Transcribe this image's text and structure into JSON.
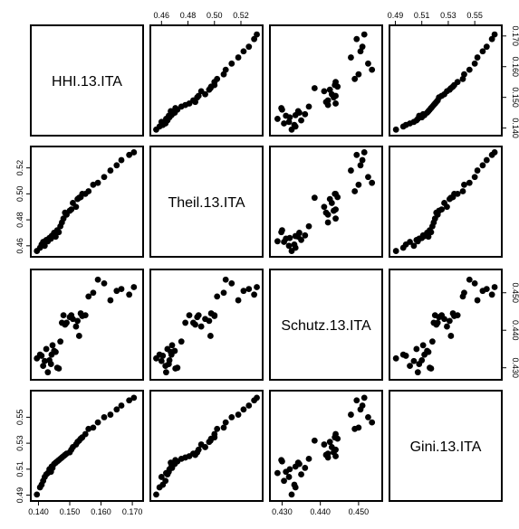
{
  "chart_data": {
    "type": "scatter",
    "subtype": "scatterplot-matrix",
    "variables": [
      "HHI.13.ITA",
      "Theil.13.ITA",
      "Schutz.13.ITA",
      "Gini.13.ITA"
    ],
    "ranges": [
      [
        0.139,
        0.172
      ],
      [
        0.455,
        0.533
      ],
      [
        0.428,
        0.455
      ],
      [
        0.489,
        0.567
      ]
    ],
    "ticks": [
      {
        "values": [
          0.14,
          0.15,
          0.16,
          0.17
        ],
        "labels": [
          "0.140",
          "0.150",
          "0.160",
          "0.170"
        ]
      },
      {
        "values": [
          0.46,
          0.48,
          0.5,
          0.52
        ],
        "labels": [
          "0.46",
          "0.48",
          "0.50",
          "0.52"
        ]
      },
      {
        "values": [
          0.43,
          0.44,
          0.45
        ],
        "labels": [
          "0.430",
          "0.440",
          "0.450"
        ]
      },
      {
        "values": [
          0.49,
          0.51,
          0.53,
          0.55
        ],
        "labels": [
          "0.49",
          "0.51",
          "0.53",
          "0.55"
        ]
      }
    ],
    "axis_sides": {
      "bottom": [
        0,
        2
      ],
      "top": [
        1,
        3
      ],
      "left": [
        1,
        3
      ],
      "right": [
        0,
        2
      ]
    },
    "grid": false,
    "legend": "none",
    "observations": [
      [
        0.1395,
        0.456,
        0.4325,
        0.4905
      ],
      [
        0.1405,
        0.4585,
        0.4335,
        0.496
      ],
      [
        0.141,
        0.461,
        0.4332,
        0.498
      ],
      [
        0.1415,
        0.463,
        0.4305,
        0.501
      ],
      [
        0.142,
        0.46,
        0.4318,
        0.504
      ],
      [
        0.1425,
        0.4645,
        0.435,
        0.506
      ],
      [
        0.143,
        0.4635,
        0.4288,
        0.507
      ],
      [
        0.1435,
        0.466,
        0.432,
        0.51
      ],
      [
        0.144,
        0.4655,
        0.431,
        0.508
      ],
      [
        0.1442,
        0.4675,
        0.4335,
        0.512
      ],
      [
        0.1445,
        0.468,
        0.436,
        0.511
      ],
      [
        0.145,
        0.47,
        0.4345,
        0.514
      ],
      [
        0.1455,
        0.467,
        0.4342,
        0.515
      ],
      [
        0.146,
        0.472,
        0.43,
        0.516
      ],
      [
        0.1465,
        0.4705,
        0.4298,
        0.517
      ],
      [
        0.147,
        0.475,
        0.437,
        0.518
      ],
      [
        0.1475,
        0.478,
        0.442,
        0.519
      ],
      [
        0.148,
        0.481,
        0.444,
        0.52
      ],
      [
        0.1485,
        0.4855,
        0.4415,
        0.521
      ],
      [
        0.149,
        0.484,
        0.442,
        0.522
      ],
      [
        0.15,
        0.487,
        0.4435,
        0.523
      ],
      [
        0.1505,
        0.488,
        0.444,
        0.525
      ],
      [
        0.151,
        0.493,
        0.443,
        0.527
      ],
      [
        0.152,
        0.49,
        0.441,
        0.529
      ],
      [
        0.1525,
        0.496,
        0.4425,
        0.531
      ],
      [
        0.153,
        0.497,
        0.4385,
        0.532
      ],
      [
        0.1535,
        0.4975,
        0.4445,
        0.5335
      ],
      [
        0.154,
        0.5,
        0.4438,
        0.5345
      ],
      [
        0.155,
        0.5,
        0.444,
        0.537
      ],
      [
        0.156,
        0.502,
        0.449,
        0.541
      ],
      [
        0.1575,
        0.507,
        0.45,
        0.542
      ],
      [
        0.159,
        0.5085,
        0.4535,
        0.546
      ],
      [
        0.161,
        0.513,
        0.4525,
        0.55
      ],
      [
        0.163,
        0.518,
        0.448,
        0.552
      ],
      [
        0.165,
        0.522,
        0.4505,
        0.556
      ],
      [
        0.1665,
        0.526,
        0.451,
        0.559
      ],
      [
        0.169,
        0.53,
        0.4495,
        0.563
      ],
      [
        0.1705,
        0.532,
        0.4515,
        0.565
      ]
    ]
  }
}
